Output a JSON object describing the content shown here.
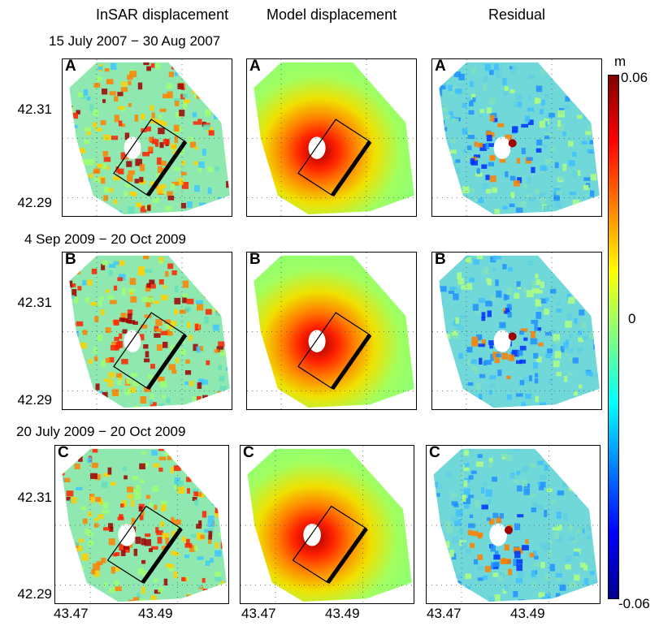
{
  "columns": {
    "insar": "InSAR displacement",
    "model": "Model displacement",
    "residual": "Residual"
  },
  "rows": [
    {
      "date_range": "15 July 2007 − 30 Aug 2007",
      "letter": "A"
    },
    {
      "date_range": "4 Sep 2009 − 20 Oct 2009",
      "letter": "B"
    },
    {
      "date_range": "20 July 2009 − 20 Oct 2009",
      "letter": "C"
    }
  ],
  "y_ticks": [
    "42.31",
    "42.29"
  ],
  "x_ticks": [
    "43.47",
    "43.49"
  ],
  "colorbar": {
    "unit": "m",
    "max": "0.06",
    "mid": "0",
    "min": "-0.06",
    "colors": [
      "#00008f",
      "#0000ff",
      "#007fff",
      "#00ffff",
      "#7fff7f",
      "#ffff00",
      "#ff7f00",
      "#ff0000",
      "#7f0000"
    ]
  }
}
